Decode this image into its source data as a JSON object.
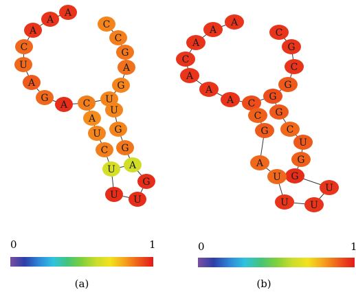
{
  "figure": {
    "panels": [
      {
        "id": "a",
        "caption": "(a)",
        "scale": {
          "min_label": "0",
          "max_label": "1"
        },
        "nucleotides": [
          {
            "label": "A",
            "score": 0.96
          },
          {
            "label": "A",
            "score": 0.96
          },
          {
            "label": "A",
            "score": 0.96
          },
          {
            "label": "C",
            "score": 0.88
          },
          {
            "label": "U",
            "score": 0.88
          },
          {
            "label": "A",
            "score": 0.9
          },
          {
            "label": "G",
            "score": 0.88
          },
          {
            "label": "A",
            "score": 0.97
          },
          {
            "label": "C",
            "score": 0.85
          },
          {
            "label": "U",
            "score": 0.84
          },
          {
            "label": "C",
            "score": 0.84
          },
          {
            "label": "C",
            "score": 0.85
          },
          {
            "label": "G",
            "score": 0.86
          },
          {
            "label": "A",
            "score": 0.87
          },
          {
            "label": "G",
            "score": 0.84
          },
          {
            "label": "U",
            "score": 0.84
          },
          {
            "label": "G",
            "score": 0.84
          },
          {
            "label": "G",
            "score": 0.86
          },
          {
            "label": "A",
            "score": 0.62
          },
          {
            "label": "U",
            "score": 0.63
          },
          {
            "label": "C",
            "score": 0.85
          },
          {
            "label": "U",
            "score": 0.84
          },
          {
            "label": "A",
            "score": 0.83
          },
          {
            "label": "G",
            "score": 0.97
          },
          {
            "label": "U",
            "score": 0.97
          },
          {
            "label": "U",
            "score": 0.97
          }
        ]
      },
      {
        "id": "b",
        "caption": "(b)",
        "scale": {
          "min_label": "0",
          "max_label": "1"
        },
        "nucleotides": [
          {
            "label": "A",
            "score": 0.96
          },
          {
            "label": "A",
            "score": 0.96
          },
          {
            "label": "A",
            "score": 0.96
          },
          {
            "label": "C",
            "score": 0.96
          },
          {
            "label": "A",
            "score": 0.96
          },
          {
            "label": "A",
            "score": 0.96
          },
          {
            "label": "A",
            "score": 0.96
          },
          {
            "label": "C",
            "score": 0.92
          },
          {
            "label": "G",
            "score": 0.92
          },
          {
            "label": "C",
            "score": 0.96
          },
          {
            "label": "G",
            "score": 0.96
          },
          {
            "label": "C",
            "score": 0.96
          },
          {
            "label": "G",
            "score": 0.9
          },
          {
            "label": "G",
            "score": 0.9
          },
          {
            "label": "C",
            "score": 0.88
          },
          {
            "label": "U",
            "score": 0.9
          },
          {
            "label": "G",
            "score": 0.89
          },
          {
            "label": "G",
            "score": 0.97
          },
          {
            "label": "U",
            "score": 0.88
          },
          {
            "label": "A",
            "score": 0.88
          },
          {
            "label": "G",
            "score": 0.9
          },
          {
            "label": "C",
            "score": 0.89
          },
          {
            "label": "U",
            "score": 0.96
          },
          {
            "label": "U",
            "score": 0.96
          },
          {
            "label": "U",
            "score": 0.96
          }
        ]
      }
    ],
    "colors": {
      "edge": "#333333",
      "text": "#1a1a1a",
      "gradient": [
        "#7a4fa0",
        "#2c3ea8",
        "#2f86d8",
        "#2fc3e0",
        "#43c47b",
        "#7fd03b",
        "#c9dd2c",
        "#f2e21f",
        "#f7a21d",
        "#ee5a1b",
        "#e21a1a"
      ]
    }
  }
}
